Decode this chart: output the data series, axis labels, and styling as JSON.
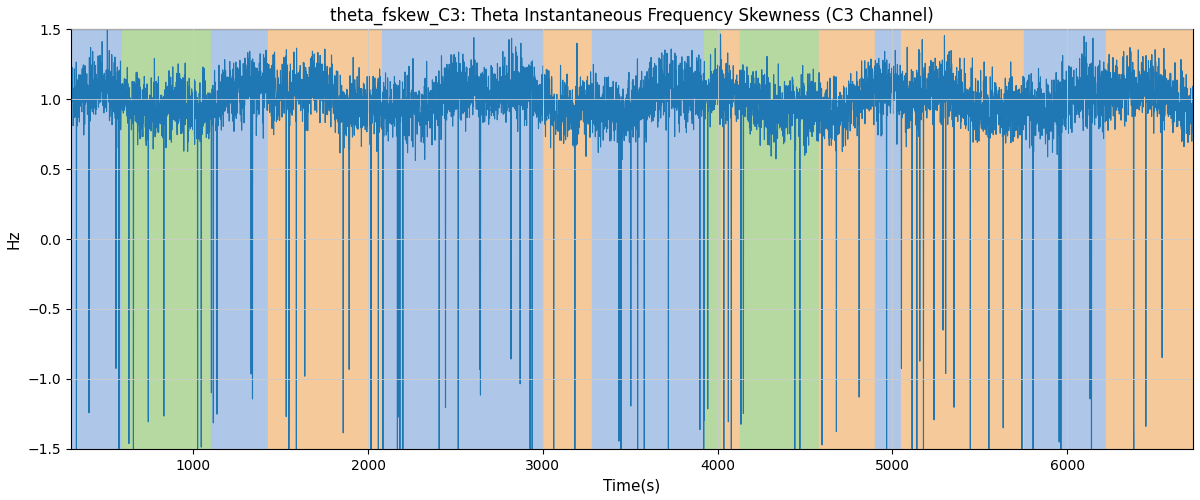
{
  "title": "theta_fskew_C3: Theta Instantaneous Frequency Skewness (C3 Channel)",
  "xlabel": "Time(s)",
  "ylabel": "Hz",
  "ylim": [
    -1.5,
    1.5
  ],
  "xlim": [
    300,
    6720
  ],
  "line_color": "#1f77b4",
  "line_width": 0.8,
  "figsize": [
    12.0,
    5.0
  ],
  "dpi": 100,
  "bg_bands": [
    {
      "xmin": 300,
      "xmax": 590,
      "color": "#aec6e8"
    },
    {
      "xmin": 590,
      "xmax": 1100,
      "color": "#b5d9a0"
    },
    {
      "xmin": 1100,
      "xmax": 1430,
      "color": "#aec6e8"
    },
    {
      "xmin": 1430,
      "xmax": 2080,
      "color": "#f5c999"
    },
    {
      "xmin": 2080,
      "xmax": 3000,
      "color": "#aec6e8"
    },
    {
      "xmin": 3000,
      "xmax": 3280,
      "color": "#f5c999"
    },
    {
      "xmin": 3280,
      "xmax": 3920,
      "color": "#aec6e8"
    },
    {
      "xmin": 3920,
      "xmax": 4020,
      "color": "#b5d9a0"
    },
    {
      "xmin": 4020,
      "xmax": 4130,
      "color": "#f5c999"
    },
    {
      "xmin": 4130,
      "xmax": 4580,
      "color": "#b5d9a0"
    },
    {
      "xmin": 4580,
      "xmax": 4900,
      "color": "#f5c999"
    },
    {
      "xmin": 4900,
      "xmax": 5050,
      "color": "#aec6e8"
    },
    {
      "xmin": 5050,
      "xmax": 5750,
      "color": "#f5c999"
    },
    {
      "xmin": 5750,
      "xmax": 6220,
      "color": "#aec6e8"
    },
    {
      "xmin": 6220,
      "xmax": 6720,
      "color": "#f5c999"
    }
  ],
  "seed": 42,
  "n_points": 6420,
  "t_start": 300,
  "t_end": 6720,
  "spike_prob": 0.012,
  "spike_min": 1.8,
  "spike_max": 3.0,
  "base_level": 1.0,
  "noise_std": 0.12,
  "slow_amp1": 0.08,
  "slow_period1": 1200,
  "slow_amp2": 0.04,
  "slow_period2": 400
}
